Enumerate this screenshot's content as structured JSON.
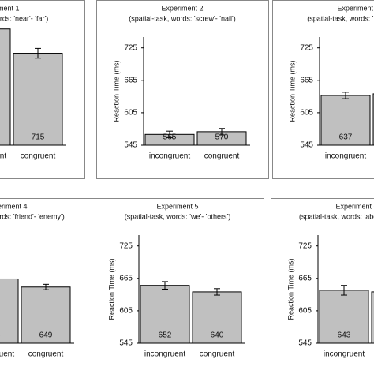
{
  "chart_data": [
    {
      "type": "bar",
      "title": "Experiment 1",
      "subtitle": "(spatial-task, words: 'near'- 'far')",
      "ylabel": "Reaction Time (ms)",
      "categories": [
        "incongruent",
        "congruent"
      ],
      "values": [
        760,
        715
      ],
      "errors": [
        8,
        9
      ],
      "color": "#c0c0c0",
      "ylim": [
        545,
        745
      ],
      "yticks": [
        545,
        605,
        665,
        725
      ]
    },
    {
      "type": "bar",
      "title": "Experiment 2",
      "subtitle": "(spatial-task, words: 'screw'- 'nail')",
      "ylabel": "Reaction Time (ms)",
      "categories": [
        "incongruent",
        "congruent"
      ],
      "values": [
        565,
        570
      ],
      "errors": [
        6,
        6
      ],
      "color": "#c0c0c0",
      "ylim": [
        545,
        745
      ],
      "yticks": [
        545,
        605,
        665,
        725
      ]
    },
    {
      "type": "bar",
      "title": "Experiment 3",
      "subtitle": "(spatial-task, words: 'up'- 'down')",
      "ylabel": "Reaction Time (ms)",
      "categories": [
        "incongruent",
        "congruent"
      ],
      "values": [
        637,
        640
      ],
      "errors": [
        6,
        6
      ],
      "color": "#c0c0c0",
      "ylim": [
        545,
        745
      ],
      "yticks": [
        545,
        605,
        665,
        725
      ]
    },
    {
      "type": "bar",
      "title": "Experiment 4",
      "subtitle": "(spatial-task, words: 'friend'- 'enemy')",
      "ylabel": "Reaction Time (ms)",
      "categories": [
        "incongruent",
        "congruent"
      ],
      "values": [
        664,
        649
      ],
      "errors": [
        6,
        5
      ],
      "color": "#c0c0c0",
      "ylim": [
        545,
        745
      ],
      "yticks": [
        545,
        605,
        665,
        725
      ]
    },
    {
      "type": "bar",
      "title": "Experiment 5",
      "subtitle": "(spatial-task, words: 'we'- 'others')",
      "ylabel": "Reaction Time (ms)",
      "categories": [
        "incongruent",
        "congruent"
      ],
      "values": [
        652,
        640
      ],
      "errors": [
        7,
        6
      ],
      "color": "#c0c0c0",
      "ylim": [
        545,
        745
      ],
      "yticks": [
        545,
        605,
        665,
        725
      ]
    },
    {
      "type": "bar",
      "title": "Experiment 6",
      "subtitle": "(spatial-task, words: 'above'- 'below')",
      "ylabel": "Reaction Time (ms)",
      "categories": [
        "incongruent",
        "congruent"
      ],
      "values": [
        643,
        640
      ],
      "errors": [
        9,
        6
      ],
      "color": "#c0c0c0",
      "ylim": [
        545,
        745
      ],
      "yticks": [
        545,
        605,
        665,
        725
      ]
    }
  ]
}
